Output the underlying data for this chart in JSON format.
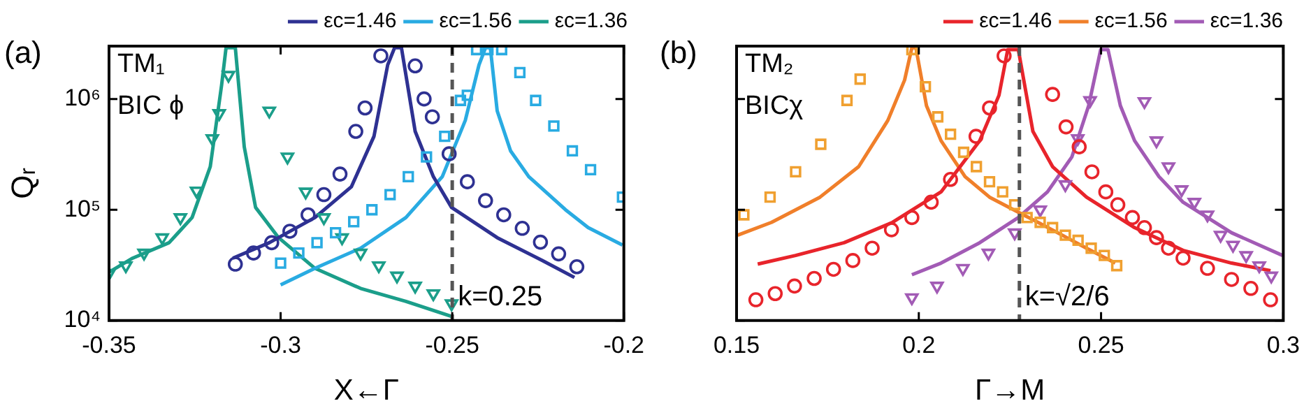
{
  "chart_data": [
    {
      "type": "line",
      "ylabel": "Qᵣ",
      "xlabel": "X←Γ",
      "log": "y",
      "legend": "top",
      "grid": false,
      "xlim": [
        -0.35,
        -0.2
      ],
      "xticks": [
        -0.35,
        -0.3,
        -0.25,
        -0.2
      ],
      "ylim": [
        10000,
        3000000
      ],
      "yticks": [
        {
          "value": 10000,
          "label": "10⁴"
        },
        {
          "value": 100000,
          "label": "10⁵"
        },
        {
          "value": 1000000,
          "label": "10⁶"
        }
      ],
      "annotations": [
        "(a)",
        "TM₁",
        "BIC ϕ",
        {
          "text": "k=0.25",
          "x": -0.25,
          "y": 12000
        }
      ],
      "ref_lines": [
        {
          "axis": "x",
          "value": -0.25,
          "color": "#555555",
          "line_style": "dashed"
        }
      ],
      "series": [
        {
          "name": "εc=1.46",
          "type": "line",
          "marker": "none",
          "color": "#2e3192",
          "x": [
            -0.3139,
            -0.3033,
            -0.29,
            -0.2794,
            -0.2728,
            -0.2688,
            -0.2668,
            -0.2648,
            -0.2608,
            -0.2555,
            -0.2502,
            -0.2369,
            -0.2237,
            -0.2144
          ],
          "values": [
            36600,
            50400,
            85000,
            161000,
            460000,
            2030000,
            2900000,
            2900000,
            510000,
            199000,
            105000,
            56000,
            34800,
            24500
          ]
        },
        {
          "type": "scatter",
          "marker": "circle",
          "color": "#2e3192",
          "x": [
            -0.3132,
            -0.3079,
            -0.3026,
            -0.2973,
            -0.292,
            -0.2874,
            -0.2827,
            -0.2781,
            -0.2754,
            -0.2708,
            -0.2608,
            -0.2582,
            -0.2558,
            -0.2509,
            -0.2456,
            -0.2403,
            -0.235,
            -0.2296,
            -0.2243,
            -0.219,
            -0.2137
          ],
          "values": [
            32300,
            40700,
            50400,
            64000,
            90000,
            137000,
            210000,
            510000,
            830000,
            2450000,
            1990000,
            1000000,
            690000,
            320000,
            179000,
            121000,
            90000,
            68000,
            51000,
            40000,
            30600
          ]
        },
        {
          "name": "εc=1.56",
          "type": "line",
          "marker": "none",
          "color": "#29abe2",
          "x": [
            -0.3,
            -0.29,
            -0.2767,
            -0.2635,
            -0.2529,
            -0.2462,
            -0.2422,
            -0.2403,
            -0.2389,
            -0.2369,
            -0.233,
            -0.2277,
            -0.217,
            -0.2104,
            -0.2004
          ],
          "values": [
            21000,
            29600,
            45000,
            85000,
            199000,
            640000,
            2030000,
            2900000,
            2900000,
            780000,
            340000,
            199000,
            100000,
            69000,
            48000
          ]
        },
        {
          "type": "scatter",
          "marker": "square",
          "color": "#29abe2",
          "x": [
            -0.3,
            -0.2947,
            -0.2894,
            -0.284,
            -0.2787,
            -0.2734,
            -0.2681,
            -0.2628,
            -0.2575,
            -0.2522,
            -0.2476,
            -0.2456,
            -0.2429,
            -0.2396,
            -0.2356,
            -0.2303,
            -0.2257,
            -0.2204,
            -0.215,
            -0.2097,
            -0.2004
          ],
          "values": [
            33000,
            40700,
            50400,
            62000,
            78000,
            100000,
            137000,
            199000,
            300000,
            460000,
            970000,
            1080000,
            2790000,
            2790000,
            2790000,
            1730000,
            970000,
            570000,
            340000,
            230000,
            130000
          ]
        },
        {
          "name": "εc=1.36",
          "type": "line",
          "marker": "none",
          "color": "#1b9e8a",
          "x": [
            -0.35,
            -0.3431,
            -0.3325,
            -0.3258,
            -0.3205,
            -0.3172,
            -0.3159,
            -0.3132,
            -0.3106,
            -0.3073,
            -0.3006,
            -0.29,
            -0.2767,
            -0.2635,
            -0.2502
          ],
          "values": [
            27300,
            36600,
            50400,
            85000,
            245000,
            1330000,
            2900000,
            2900000,
            370000,
            105000,
            56000,
            29600,
            19500,
            14900,
            10900
          ]
        },
        {
          "type": "scatter",
          "marker": "triangle",
          "color": "#1b9e8a",
          "x": [
            -0.35,
            -0.3451,
            -0.3398,
            -0.3345,
            -0.3292,
            -0.3245,
            -0.3199,
            -0.3179,
            -0.3152,
            -0.3033,
            -0.298,
            -0.2927,
            -0.2874,
            -0.2821,
            -0.2767,
            -0.2714,
            -0.2661,
            -0.2608,
            -0.2555,
            -0.2502
          ],
          "values": [
            26700,
            31300,
            40700,
            56000,
            85000,
            148000,
            440000,
            740000,
            1640000,
            780000,
            300000,
            145000,
            85000,
            56000,
            40700,
            31300,
            25300,
            20500,
            17500,
            14200
          ]
        }
      ]
    },
    {
      "type": "line",
      "xlabel": "Γ→M",
      "log": "y",
      "legend": "top",
      "grid": false,
      "tick_labels": "x",
      "xlim": [
        0.15,
        0.3
      ],
      "xticks": [
        0.15,
        0.2,
        0.25,
        0.3
      ],
      "ylim": [
        10000,
        3000000
      ],
      "yticks": [
        {
          "value": 10000,
          "label": null
        },
        {
          "value": 100000,
          "label": null
        },
        {
          "value": 1000000,
          "label": null
        }
      ],
      "annotations": [
        "(b)",
        "TM₂",
        "BICχ",
        {
          "text": "k=√2/6",
          "x": 0.2276,
          "y": 12000
        }
      ],
      "ref_lines": [
        {
          "axis": "x",
          "value": 0.2276,
          "color": "#555555",
          "line_style": "dashed"
        }
      ],
      "series": [
        {
          "name": "εc=1.46",
          "type": "line",
          "marker": "none",
          "color": "#e8242b",
          "x": [
            0.1558,
            0.1662,
            0.1795,
            0.1928,
            0.2061,
            0.2167,
            0.222,
            0.2244,
            0.2273,
            0.2313,
            0.2367,
            0.246,
            0.2592,
            0.2725,
            0.2858,
            0.2965
          ],
          "values": [
            32300,
            38700,
            50400,
            77000,
            145000,
            420000,
            1080000,
            2790000,
            2790000,
            510000,
            245000,
            130000,
            69000,
            43000,
            33000,
            28200
          ]
        },
        {
          "type": "scatter",
          "marker": "circle",
          "color": "#e8242b",
          "x": [
            0.1553,
            0.1606,
            0.1659,
            0.1713,
            0.1766,
            0.1819,
            0.1872,
            0.1925,
            0.1981,
            0.2034,
            0.2087,
            0.2157,
            0.2194,
            0.2234,
            0.2367,
            0.2404,
            0.244,
            0.2475,
            0.2513,
            0.2546,
            0.2586,
            0.2619,
            0.2652,
            0.2685,
            0.2725,
            0.2792,
            0.2858,
            0.2911,
            0.2965
          ],
          "values": [
            15400,
            17500,
            20500,
            24000,
            29000,
            34800,
            45000,
            66000,
            85000,
            117000,
            188000,
            460000,
            830000,
            2450000,
            1100000,
            560000,
            370000,
            220000,
            145000,
            111000,
            85000,
            69000,
            56000,
            45000,
            36600,
            29600,
            23500,
            19500,
            15400
          ]
        },
        {
          "name": "εc=1.56",
          "type": "line",
          "marker": "none",
          "color": "#f07f2a",
          "x": [
            0.1503,
            0.1596,
            0.1729,
            0.1835,
            0.1915,
            0.1961,
            0.1981,
            0.1992,
            0.2021,
            0.2061,
            0.2127,
            0.2194,
            0.2273,
            0.2327,
            0.2406,
            0.246,
            0.2539
          ],
          "values": [
            59000,
            77000,
            130000,
            245000,
            640000,
            1480000,
            2900000,
            2900000,
            870000,
            420000,
            199000,
            130000,
            95000,
            77000,
            56000,
            45000,
            33000
          ]
        },
        {
          "type": "scatter",
          "marker": "square",
          "color": "#f0a030",
          "x": [
            0.152,
            0.1592,
            0.1662,
            0.1731,
            0.1803,
            0.1839,
            0.1981,
            0.2018,
            0.2052,
            0.2087,
            0.2123,
            0.2158,
            0.2194,
            0.223,
            0.2263,
            0.2297,
            0.2333,
            0.2367,
            0.2402,
            0.2437,
            0.2473,
            0.2509,
            0.2543
          ],
          "values": [
            90000,
            130000,
            220000,
            390000,
            970000,
            1510000,
            2790000,
            1290000,
            690000,
            480000,
            330000,
            245000,
            179000,
            145000,
            111000,
            85000,
            77000,
            69000,
            59000,
            53000,
            45000,
            38700,
            31300
          ]
        },
        {
          "name": "εc=1.36",
          "type": "line",
          "marker": "none",
          "color": "#a25bb5",
          "x": [
            0.1981,
            0.2061,
            0.2167,
            0.2273,
            0.2353,
            0.242,
            0.2466,
            0.2499,
            0.2519,
            0.2553,
            0.2592,
            0.2659,
            0.2725,
            0.2858,
            0.2998
          ],
          "values": [
            25900,
            33000,
            50400,
            85000,
            145000,
            300000,
            870000,
            2790000,
            2790000,
            870000,
            420000,
            199000,
            117000,
            62000,
            38700
          ]
        },
        {
          "type": "scatter",
          "marker": "triangle",
          "color": "#a25bb5",
          "x": [
            0.1981,
            0.205,
            0.2121,
            0.2191,
            0.2263,
            0.2333,
            0.2402,
            0.2436,
            0.247,
            0.2619,
            0.2652,
            0.2685,
            0.2721,
            0.2756,
            0.2792,
            0.2828,
            0.2862,
            0.2898,
            0.2934,
            0.2967
          ],
          "values": [
            16100,
            20500,
            29600,
            40700,
            62000,
            100000,
            169000,
            440000,
            970000,
            950000,
            420000,
            245000,
            152000,
            117000,
            90000,
            59000,
            48000,
            38700,
            31300,
            25300
          ]
        }
      ]
    }
  ]
}
